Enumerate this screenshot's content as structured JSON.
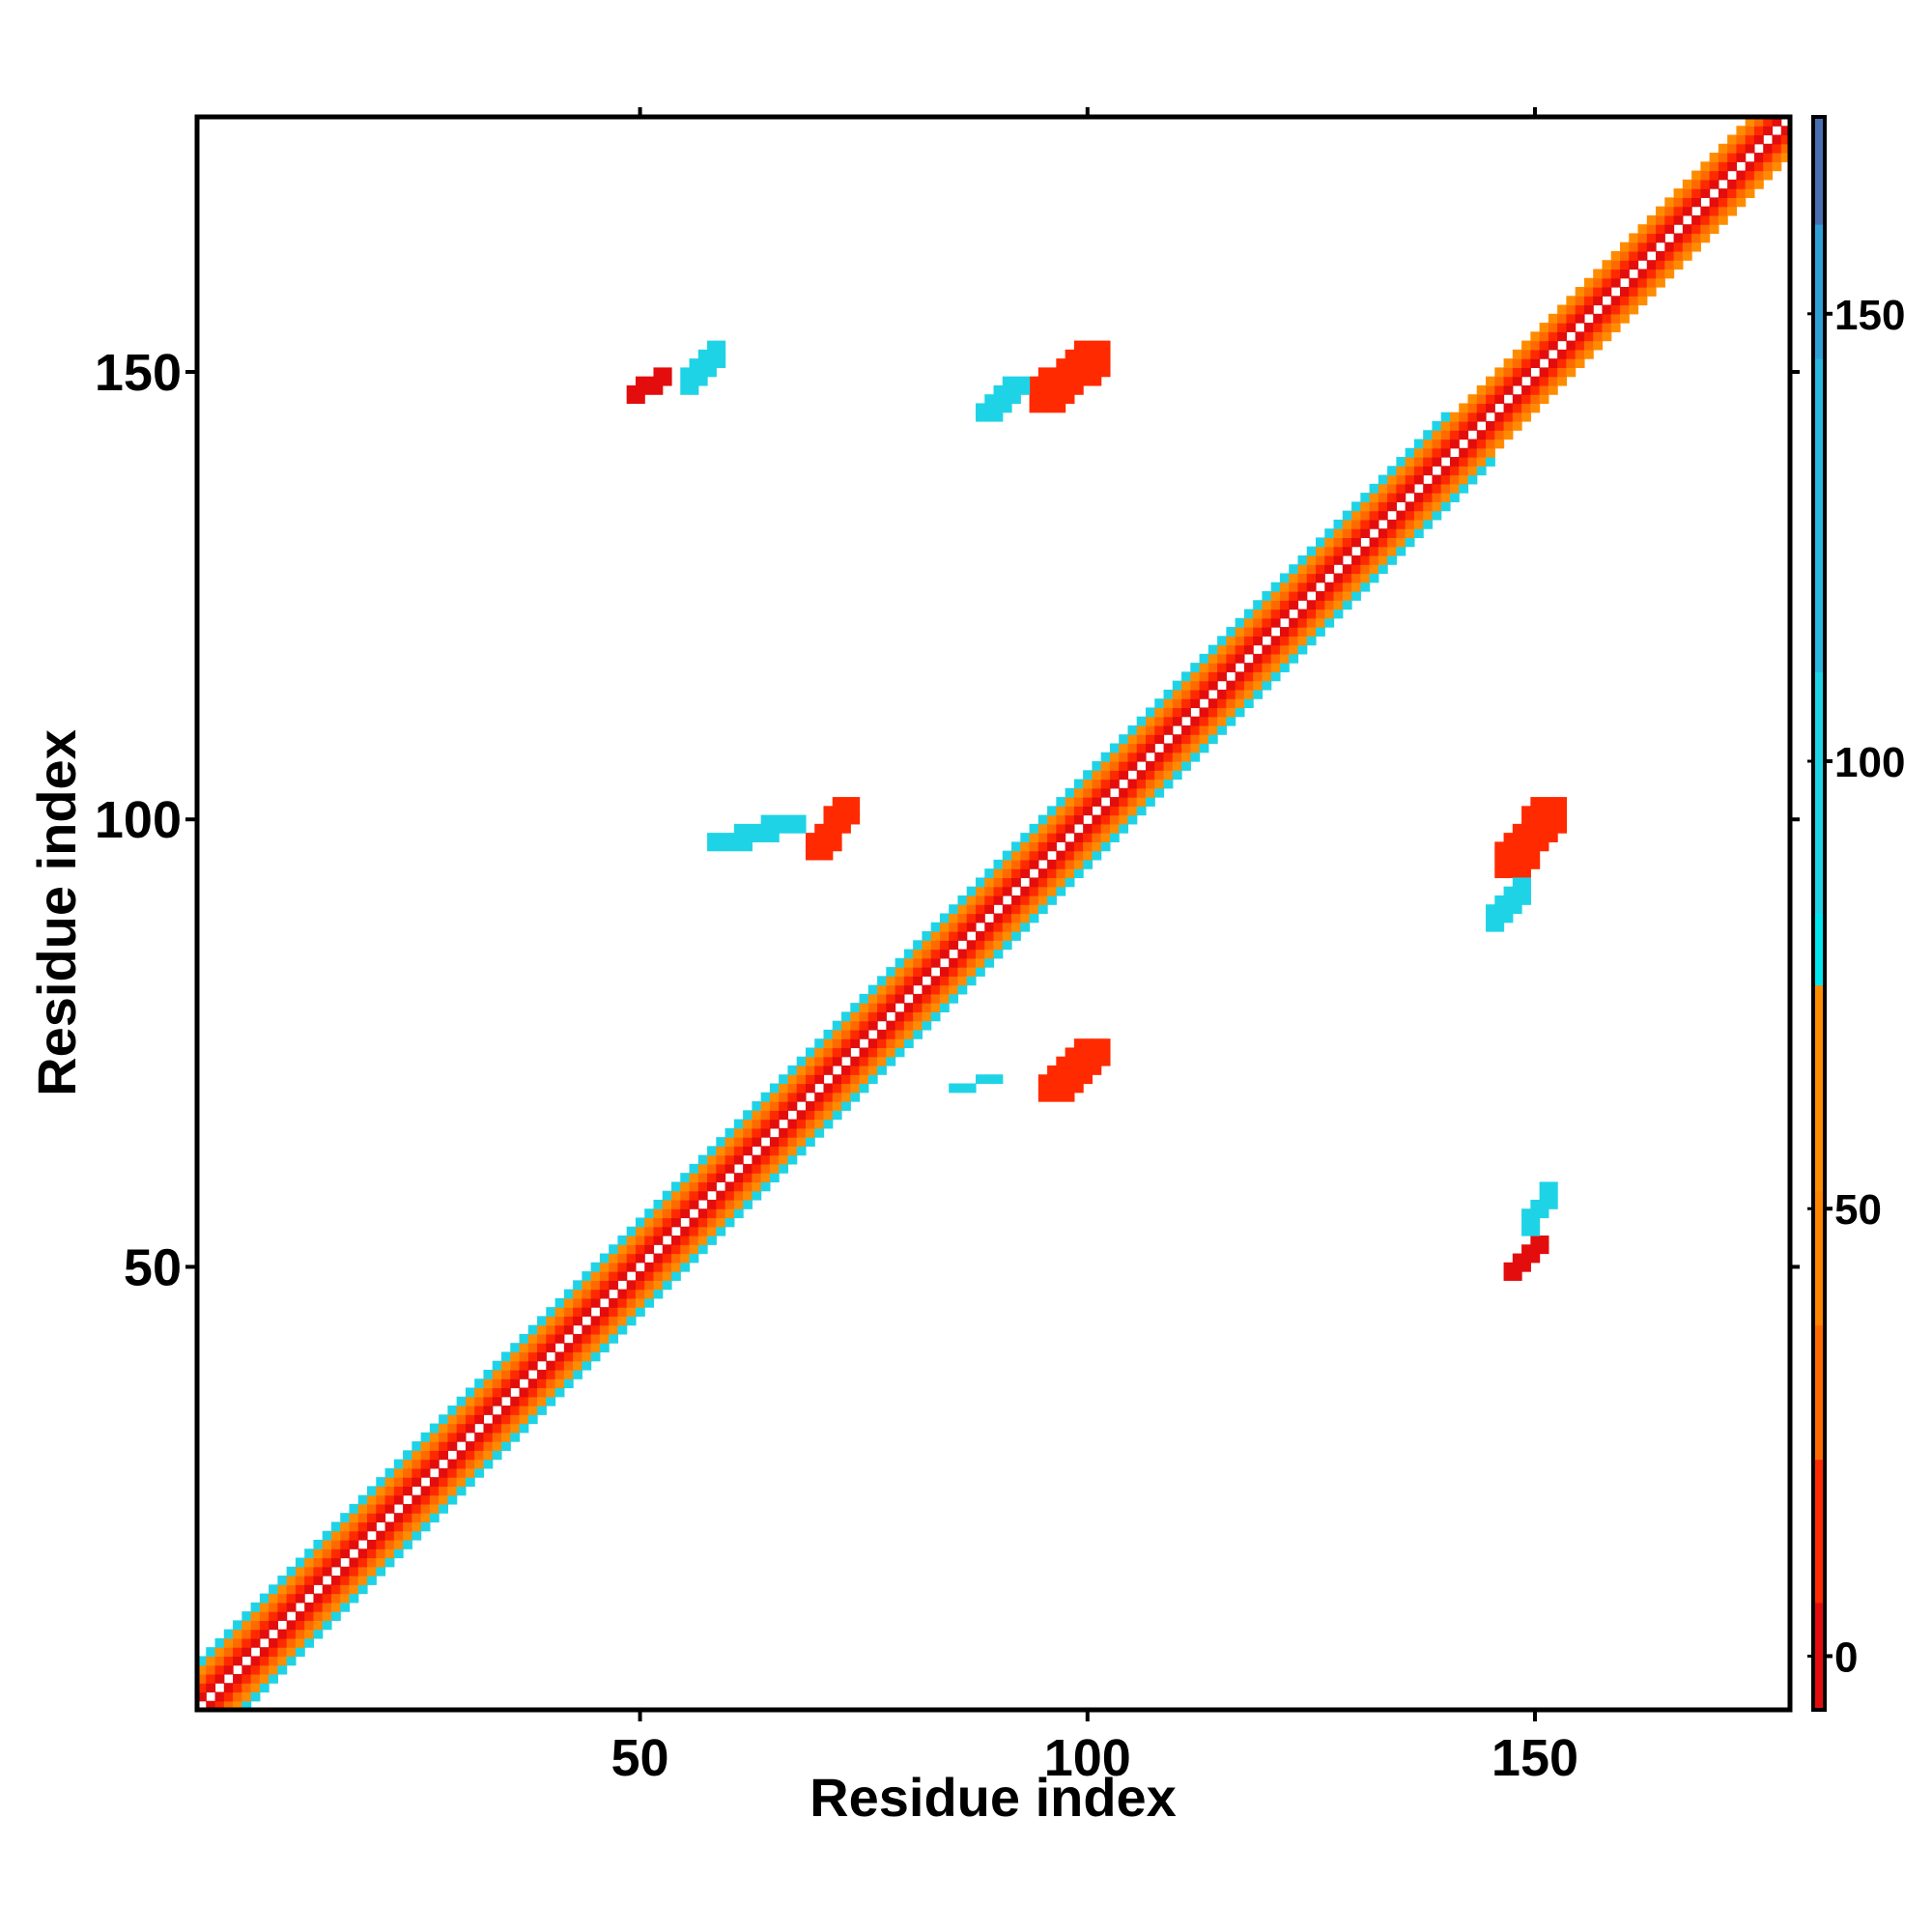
{
  "chart_data": {
    "type": "heatmap",
    "title": "",
    "xlabel": "Residue index",
    "ylabel": "Residue index",
    "xlim": [
      1,
      178
    ],
    "ylim": [
      1,
      178
    ],
    "xticks": [
      50,
      100,
      150
    ],
    "yticks": [
      50,
      100,
      150
    ],
    "xtick_labels": [
      "50",
      "100",
      "150"
    ],
    "ytick_labels": [
      "50",
      "100",
      "150"
    ],
    "grid": false,
    "colorbar": {
      "placement": "right",
      "range": [
        -6,
        172
      ],
      "ticks": [
        0,
        50,
        100,
        150
      ],
      "tick_labels": [
        "0",
        "50",
        "100",
        "150"
      ],
      "bins": [
        {
          "from": -6,
          "to": 6,
          "color": "#e30d0d"
        },
        {
          "from": 6,
          "to": 22,
          "color": "#ff2a00"
        },
        {
          "from": 22,
          "to": 37,
          "color": "#ff6a00"
        },
        {
          "from": 37,
          "to": 52,
          "color": "#ff8400"
        },
        {
          "from": 52,
          "to": 75,
          "color": "#ff8c00"
        },
        {
          "from": 75,
          "to": 83,
          "color": "#00e5ee"
        },
        {
          "from": 83,
          "to": 110,
          "color": "#1fd3e6"
        },
        {
          "from": 110,
          "to": 145,
          "color": "#28b8e0"
        },
        {
          "from": 145,
          "to": 160,
          "color": "#2fa0d6"
        },
        {
          "from": 160,
          "to": 172,
          "color": "#4a6fb0"
        },
        {
          "from": 172,
          "to": 178,
          "color": "#ffffff"
        }
      ]
    },
    "value_bands": {
      "offset_1": 0,
      "offset_2": 10,
      "offset_3": 35,
      "offset_4": 60,
      "offset_5": 90,
      "sheet_contact": 5,
      "loop_contact": 95
    },
    "diagonal_width": [
      {
        "from": 1,
        "to": 50,
        "halfwidth": 5
      },
      {
        "from": 50,
        "to": 140,
        "halfwidth": 5
      },
      {
        "from": 140,
        "to": 178,
        "halfwidth": 4
      }
    ],
    "off_diagonal_patches": [
      {
        "x": [
          94,
          102
        ],
        "y": [
          146,
          153
        ],
        "value": 10
      },
      {
        "x": [
          49,
          53
        ],
        "y": [
          147,
          150
        ],
        "value": 5
      },
      {
        "x": [
          55,
          59
        ],
        "y": [
          148,
          153
        ],
        "value": 95
      },
      {
        "x": [
          69,
          74
        ],
        "y": [
          96,
          102
        ],
        "value": 10
      },
      {
        "x": [
          146,
          153
        ],
        "y": [
          94,
          102
        ],
        "value": 10
      },
      {
        "x": [
          95,
          102
        ],
        "y": [
          69,
          75
        ],
        "value": 10
      },
      {
        "x": [
          147,
          151
        ],
        "y": [
          49,
          53
        ],
        "value": 5
      },
      {
        "x": [
          149,
          152
        ],
        "y": [
          54,
          59
        ],
        "value": 95
      },
      {
        "x": [
          88,
          93
        ],
        "y": [
          145,
          149
        ],
        "value": 95
      },
      {
        "x": [
          58,
          68
        ],
        "y": [
          97,
          100
        ],
        "value": 95
      },
      {
        "x": [
          85,
          90
        ],
        "y": [
          70,
          71
        ],
        "value": 95
      },
      {
        "x": [
          145,
          149
        ],
        "y": [
          88,
          93
        ],
        "value": 95
      }
    ]
  }
}
